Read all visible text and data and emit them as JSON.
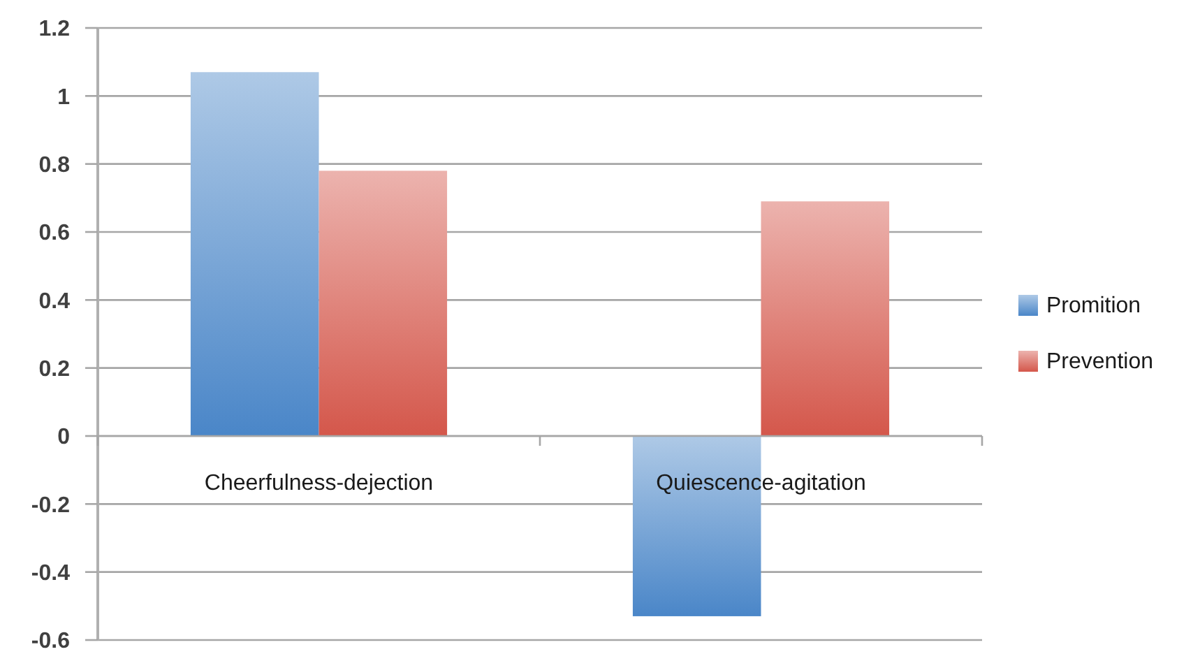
{
  "chart_data": {
    "type": "bar",
    "categories": [
      "Cheerfulness-dejection",
      "Quiescence-agitation"
    ],
    "series": [
      {
        "name": "Promition",
        "color": "#4a86c8",
        "values": [
          1.07,
          -0.53
        ]
      },
      {
        "name": "Prevention",
        "color": "#d4574b",
        "values": [
          0.78,
          0.69
        ]
      }
    ],
    "ylim": [
      -0.6,
      1.2
    ],
    "yticks": [
      -0.6,
      -0.4,
      -0.2,
      0,
      0.2,
      0.4,
      0.6,
      0.8,
      1,
      1.2
    ],
    "grid": "y",
    "legend": "right"
  }
}
